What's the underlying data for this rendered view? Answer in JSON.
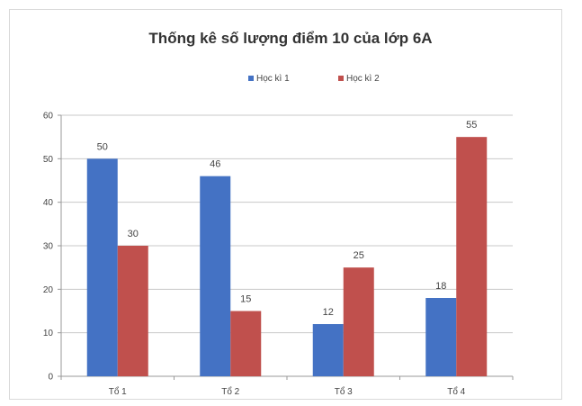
{
  "chart_data": {
    "type": "bar",
    "title": "Thống kê số lượng điểm 10 của lớp 6A",
    "categories": [
      "Tổ 1",
      "Tổ 2",
      "Tổ 3",
      "Tổ 4"
    ],
    "series": [
      {
        "name": "Học kì 1",
        "color": "#4472C4",
        "values": [
          50,
          46,
          12,
          18
        ]
      },
      {
        "name": "Học kì 2",
        "color": "#C0504D",
        "values": [
          30,
          15,
          25,
          55
        ]
      }
    ],
    "yticks": [
      0,
      10,
      20,
      30,
      40,
      50,
      60
    ],
    "ylim": [
      0,
      60
    ],
    "grid": true,
    "legend_position": "top",
    "xlabel": "",
    "ylabel": ""
  }
}
